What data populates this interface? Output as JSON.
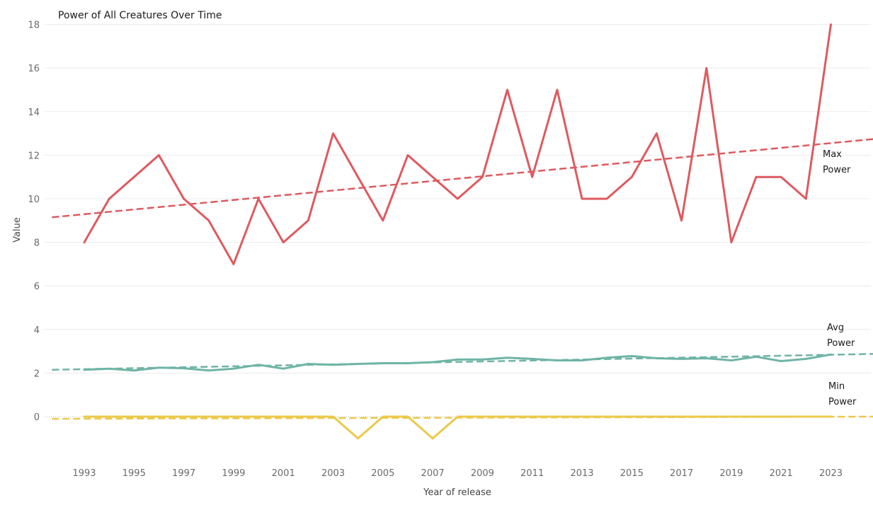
{
  "chart_data": {
    "type": "line",
    "title": "Power of All Creatures Over Time",
    "xlabel": "Year of release",
    "ylabel": "Value",
    "x": [
      1993,
      1994,
      1995,
      1996,
      1997,
      1998,
      1999,
      2000,
      2001,
      2002,
      2003,
      2004,
      2005,
      2006,
      2007,
      2008,
      2009,
      2010,
      2011,
      2012,
      2013,
      2014,
      2015,
      2016,
      2017,
      2018,
      2019,
      2020,
      2021,
      2022,
      2023
    ],
    "x_ticks": [
      "1993",
      "1995",
      "1997",
      "1999",
      "2001",
      "2003",
      "2005",
      "2007",
      "2009",
      "2011",
      "2013",
      "2015",
      "2017",
      "2019",
      "2021",
      "2023"
    ],
    "xlim": [
      1991.7,
      2024.8
    ],
    "y_ticks": [
      "18",
      "16",
      "14",
      "12",
      "10",
      "8",
      "6",
      "4",
      "2",
      "0"
    ],
    "ylim": [
      -2,
      18.5
    ],
    "grid": true,
    "legend": "none",
    "series": [
      {
        "name": "Max Power",
        "label_lines": [
          "Max",
          "Power"
        ],
        "color": "#de5a5f",
        "values": [
          8,
          10,
          11,
          12,
          10,
          9,
          7,
          10,
          8,
          9,
          13,
          11,
          9,
          12,
          11,
          10,
          11,
          15,
          11,
          15,
          10,
          10,
          11,
          13,
          9,
          16,
          8,
          11,
          11,
          10,
          18
        ],
        "trendline": {
          "style": "dashed",
          "start": [
            1991.7,
            9.15
          ],
          "end": [
            2024.8,
            12.75
          ]
        }
      },
      {
        "name": "Avg Power",
        "label_lines": [
          "Avg",
          "Power"
        ],
        "color": "#6fb4a6",
        "values": [
          2.15,
          2.2,
          2.12,
          2.25,
          2.22,
          2.12,
          2.2,
          2.38,
          2.2,
          2.42,
          2.38,
          2.42,
          2.45,
          2.45,
          2.5,
          2.62,
          2.62,
          2.7,
          2.65,
          2.58,
          2.58,
          2.7,
          2.78,
          2.68,
          2.65,
          2.68,
          2.58,
          2.75,
          2.55,
          2.65,
          2.85
        ],
        "trendline": {
          "style": "dashed",
          "start": [
            1991.7,
            2.15
          ],
          "end": [
            2024.8,
            2.88
          ]
        }
      },
      {
        "name": "Min Power",
        "label_lines": [
          "Min",
          "Power"
        ],
        "color": "#ecc94b",
        "values": [
          0,
          0,
          0,
          0,
          0,
          0,
          0,
          0,
          0,
          0,
          0,
          -1,
          0,
          0,
          -1,
          0,
          0,
          0,
          0,
          0,
          0,
          0,
          0,
          0,
          0,
          0,
          0,
          0,
          0,
          0,
          0
        ],
        "trendline": {
          "style": "dashed",
          "start": [
            1991.7,
            -0.1
          ],
          "end": [
            2024.8,
            0.0
          ]
        }
      }
    ]
  }
}
